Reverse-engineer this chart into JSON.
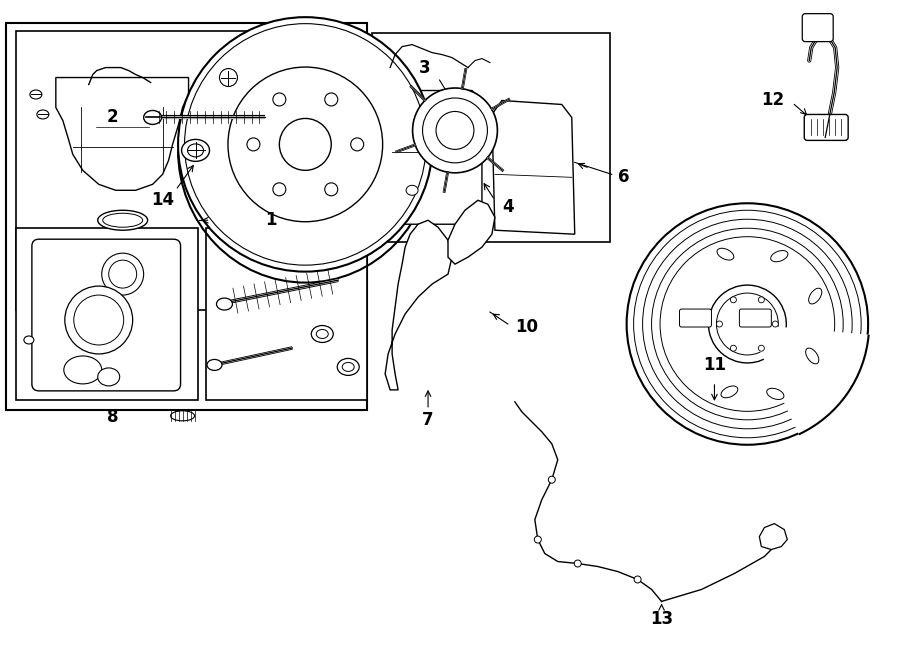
{
  "bg_color": "#ffffff",
  "line_color": "#000000",
  "fig_width": 9.0,
  "fig_height": 6.62
}
